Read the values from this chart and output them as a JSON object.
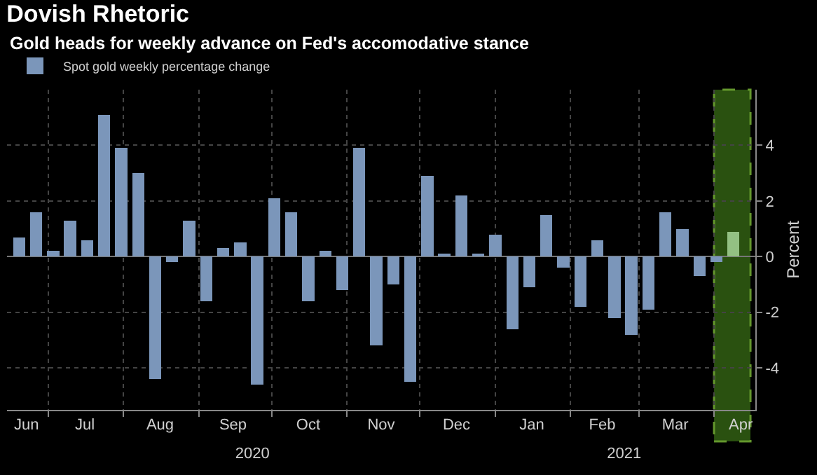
{
  "chart_data": {
    "type": "bar",
    "title": "Dovish Rhetoric",
    "subtitle": "Gold heads for weekly advance on Fed's accomodative stance",
    "ylabel": "Percent",
    "x": [
      "2020-06-19",
      "2020-06-26",
      "2020-07-03",
      "2020-07-10",
      "2020-07-17",
      "2020-07-24",
      "2020-07-31",
      "2020-08-07",
      "2020-08-14",
      "2020-08-21",
      "2020-08-28",
      "2020-09-04",
      "2020-09-11",
      "2020-09-18",
      "2020-09-25",
      "2020-10-02",
      "2020-10-09",
      "2020-10-16",
      "2020-10-23",
      "2020-10-30",
      "2020-11-06",
      "2020-11-13",
      "2020-11-20",
      "2020-11-27",
      "2020-12-04",
      "2020-12-11",
      "2020-12-18",
      "2020-12-25",
      "2021-01-01",
      "2021-01-08",
      "2021-01-15",
      "2021-01-22",
      "2021-01-29",
      "2021-02-05",
      "2021-02-12",
      "2021-02-19",
      "2021-02-26",
      "2021-03-05",
      "2021-03-12",
      "2021-03-19",
      "2021-03-26",
      "2021-04-02",
      "2021-04-09"
    ],
    "series": [
      {
        "name": "Spot gold weekly percentage change",
        "color": "#7b96ba",
        "colors": [
          null,
          null,
          null,
          null,
          null,
          null,
          null,
          null,
          null,
          null,
          null,
          null,
          null,
          null,
          null,
          null,
          null,
          null,
          null,
          null,
          null,
          null,
          null,
          null,
          null,
          null,
          null,
          null,
          null,
          null,
          null,
          null,
          null,
          null,
          null,
          null,
          null,
          null,
          null,
          null,
          null,
          null,
          "#93c083"
        ],
        "values": [
          0.7,
          1.6,
          0.2,
          1.3,
          0.6,
          5.1,
          3.9,
          3.0,
          -4.4,
          -0.2,
          1.3,
          -1.6,
          0.3,
          0.5,
          -4.6,
          2.1,
          1.6,
          -1.6,
          0.2,
          -1.2,
          3.9,
          -3.2,
          -1.0,
          -4.5,
          2.9,
          0.1,
          2.2,
          0.1,
          0.8,
          -2.6,
          -1.1,
          1.5,
          -0.4,
          -1.8,
          0.6,
          -2.2,
          -2.8,
          -1.9,
          1.6,
          1.0,
          -0.7,
          -0.2,
          0.9
        ]
      }
    ],
    "xlim": [
      "2020-06-14",
      "2021-04-18"
    ],
    "xticks": [
      {
        "value": "2020-06-22",
        "label": "Jun"
      },
      {
        "value": "2020-07-01",
        "label": null
      },
      {
        "value": "2020-07-16",
        "label": "Jul"
      },
      {
        "value": "2020-08-01",
        "label": null
      },
      {
        "value": "2020-08-16",
        "label": "Aug"
      },
      {
        "value": "2020-09-01",
        "label": null
      },
      {
        "value": "2020-09-15",
        "label": "Sep"
      },
      {
        "value": "2020-10-01",
        "label": null
      },
      {
        "value": "2020-10-16",
        "label": "Oct"
      },
      {
        "value": "2020-11-01",
        "label": null
      },
      {
        "value": "2020-11-15",
        "label": "Nov"
      },
      {
        "value": "2020-12-01",
        "label": null
      },
      {
        "value": "2020-12-16",
        "label": "Dec"
      },
      {
        "value": "2021-01-01",
        "label": null
      },
      {
        "value": "2021-01-16",
        "label": "Jan"
      },
      {
        "value": "2021-02-01",
        "label": null
      },
      {
        "value": "2021-02-14",
        "label": "Feb"
      },
      {
        "value": "2021-03-01",
        "label": null
      },
      {
        "value": "2021-03-16",
        "label": "Mar"
      },
      {
        "value": "2021-04-01",
        "label": null
      },
      {
        "value": "2021-04-12",
        "label": "Apr"
      }
    ],
    "x2lim": [
      "2020-06-14",
      "2021-04-18"
    ],
    "x2ticks": [
      {
        "value": "2020-09-23",
        "label": "2020"
      },
      {
        "value": "2021-02-23",
        "label": "2021"
      }
    ],
    "ylim": [
      -5.5,
      6
    ],
    "yticks": [
      -4,
      -2,
      0,
      2,
      4
    ],
    "bands": [
      {
        "axis": "x",
        "from": "2021-04-01",
        "to": "2021-04-16",
        "color": "#2f5a12"
      }
    ],
    "grid": true,
    "legend": "top left"
  }
}
